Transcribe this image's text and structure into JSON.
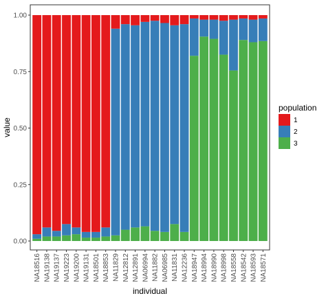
{
  "chart_data": {
    "type": "bar",
    "stacked": true,
    "xlabel": "individual",
    "ylabel": "value",
    "ylim": [
      0,
      1
    ],
    "y_ticks": [
      "0.00",
      "0.25",
      "0.50",
      "0.75",
      "1.00"
    ],
    "grid": false,
    "legend_position": "right",
    "legend_title": "population",
    "categories": [
      "NA18516",
      "NA19138",
      "NA19137",
      "NA19223",
      "NA19200",
      "NA19131",
      "NA18501",
      "NA18853",
      "NA11829",
      "NA12812",
      "NA12891",
      "NA06994",
      "NA11882",
      "NA06985",
      "NA11831",
      "NA12236",
      "NA18947",
      "NA18994",
      "NA18990",
      "NA18998",
      "NA18558",
      "NA18542",
      "NA18593",
      "NA18571"
    ],
    "series": [
      {
        "name": "3",
        "color": "#4DAF4A",
        "values": [
          0.01,
          0.02,
          0.02,
          0.025,
          0.03,
          0.015,
          0.015,
          0.02,
          0.025,
          0.05,
          0.06,
          0.065,
          0.045,
          0.04,
          0.075,
          0.04,
          0.82,
          0.905,
          0.895,
          0.825,
          0.755,
          0.89,
          0.88,
          0.885
        ]
      },
      {
        "name": "2",
        "color": "#377EB8",
        "values": [
          0.02,
          0.04,
          0.025,
          0.05,
          0.03,
          0.025,
          0.025,
          0.04,
          0.915,
          0.91,
          0.895,
          0.905,
          0.93,
          0.925,
          0.88,
          0.92,
          0.165,
          0.075,
          0.085,
          0.15,
          0.225,
          0.095,
          0.1,
          0.1
        ]
      },
      {
        "name": "1",
        "color": "#E41A1C",
        "values": [
          0.97,
          0.94,
          0.955,
          0.925,
          0.94,
          0.96,
          0.96,
          0.94,
          0.06,
          0.04,
          0.045,
          0.03,
          0.025,
          0.035,
          0.045,
          0.04,
          0.015,
          0.02,
          0.02,
          0.025,
          0.02,
          0.015,
          0.02,
          0.015
        ]
      }
    ]
  }
}
